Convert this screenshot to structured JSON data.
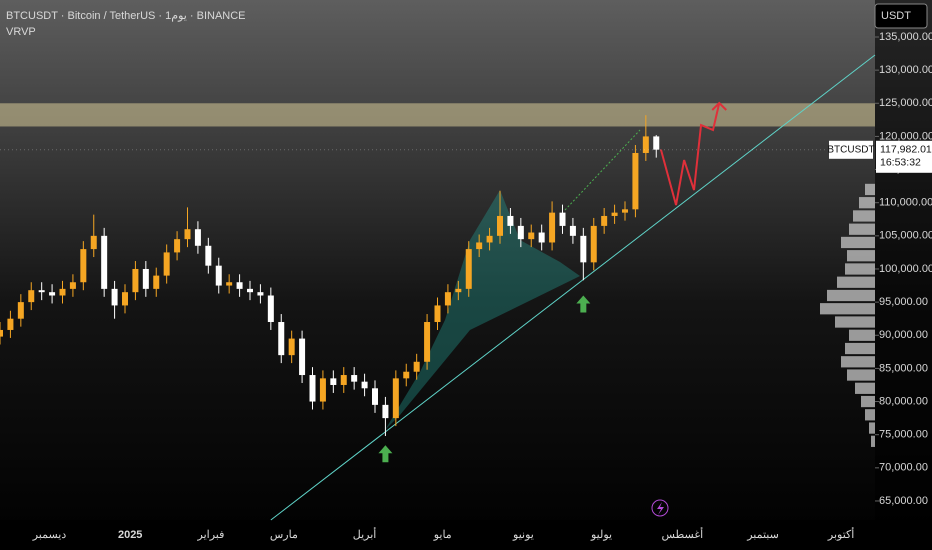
{
  "chart_data": {
    "type": "candlestick",
    "title": "BTCUSDT · Bitcoin / TetherUS · 1يوم · BINANCE",
    "indicator": "VRVP",
    "currency": "USDT",
    "symbol": "BTCUSDT",
    "last_price": {
      "value": 117982.01,
      "label": "117,982.01"
    },
    "countdown": "16:53:32",
    "x": [
      0,
      4,
      8,
      12,
      16,
      20,
      24,
      28,
      32,
      36,
      40,
      44,
      48,
      52,
      56,
      60,
      64,
      68,
      72,
      76,
      80,
      84,
      88,
      92,
      96,
      100,
      104,
      108,
      112,
      116,
      120,
      124,
      128,
      132,
      136,
      140,
      144,
      148,
      152,
      156,
      160,
      164,
      168,
      172,
      176,
      180,
      184,
      188,
      192,
      196,
      200,
      204,
      208,
      212,
      216,
      220,
      224,
      228,
      232,
      236,
      240,
      244,
      248,
      252
    ],
    "open": [
      89800,
      90800,
      92500,
      95000,
      96800,
      96500,
      96000,
      97000,
      98000,
      103000,
      105000,
      97000,
      94500,
      96500,
      100000,
      97000,
      99000,
      102500,
      104500,
      106000,
      103500,
      100500,
      97500,
      98000,
      97000,
      96500,
      96000,
      92000,
      87000,
      89500,
      84000,
      80000,
      83500,
      82500,
      84000,
      83000,
      82000,
      79500,
      77500,
      83500,
      84500,
      86000,
      92000,
      94500,
      96500,
      97000,
      103000,
      104000,
      105000,
      108000,
      106500,
      104500,
      105500,
      104000,
      108500,
      106500,
      105000,
      101000,
      106500,
      108000,
      108500,
      109000,
      117500,
      120000
    ],
    "high": [
      92000,
      93700,
      96200,
      98000,
      98000,
      97700,
      98200,
      99200,
      104200,
      108200,
      106200,
      98200,
      97700,
      101200,
      101200,
      100200,
      103700,
      105700,
      109300,
      107200,
      104700,
      101700,
      99200,
      99200,
      98200,
      97700,
      97200,
      93200,
      90700,
      90700,
      85200,
      84700,
      84700,
      85200,
      85200,
      84200,
      83200,
      80700,
      84700,
      85700,
      87200,
      93200,
      95700,
      97700,
      98200,
      104200,
      105200,
      106200,
      111800,
      109200,
      107700,
      106700,
      106700,
      110200,
      109700,
      107700,
      106200,
      107700,
      109200,
      109700,
      110200,
      118700,
      123200,
      120200
    ],
    "low": [
      88600,
      89600,
      91300,
      93800,
      95300,
      94800,
      94800,
      95800,
      96800,
      101800,
      95800,
      92500,
      93300,
      95300,
      95800,
      95800,
      97800,
      101300,
      103300,
      102300,
      99300,
      96300,
      96300,
      95800,
      95300,
      94800,
      90800,
      85800,
      85800,
      82800,
      78800,
      78800,
      81300,
      81300,
      81800,
      80800,
      78300,
      74800,
      76300,
      82300,
      83300,
      84800,
      90800,
      93300,
      95300,
      95800,
      101800,
      102800,
      103800,
      105300,
      103300,
      103300,
      102800,
      102800,
      105300,
      103800,
      98300,
      99800,
      105300,
      106800,
      107300,
      107800,
      116300,
      116800
    ],
    "close": [
      90800,
      92500,
      95000,
      96800,
      96500,
      96000,
      97000,
      98000,
      103000,
      105000,
      97000,
      94500,
      96500,
      100000,
      97000,
      99000,
      102500,
      104500,
      106000,
      103500,
      100500,
      97500,
      98000,
      97000,
      96500,
      96000,
      92000,
      87000,
      89500,
      84000,
      80000,
      83500,
      82500,
      84000,
      83000,
      82000,
      79500,
      77500,
      83500,
      84500,
      86000,
      92000,
      94500,
      96500,
      97000,
      103000,
      104000,
      105000,
      108000,
      106500,
      104500,
      105500,
      104000,
      108500,
      106500,
      105000,
      101000,
      106500,
      108000,
      108500,
      109000,
      117500,
      120000,
      118000
    ],
    "up_color": "#f5a623",
    "down_color": "#ffffff",
    "xlim": [
      0,
      336
    ],
    "xticks": [
      {
        "value": 19,
        "label": "ديسمبر"
      },
      {
        "value": 50,
        "label": "2025"
      },
      {
        "value": 81,
        "label": "فبراير"
      },
      {
        "value": 109,
        "label": "مارس"
      },
      {
        "value": 140,
        "label": "أبريل"
      },
      {
        "value": 170,
        "label": "مايو"
      },
      {
        "value": 201,
        "label": "يونيو"
      },
      {
        "value": 231,
        "label": "يوليو"
      },
      {
        "value": 262,
        "label": "أغسطس"
      },
      {
        "value": 293,
        "label": "سبتمبر"
      },
      {
        "value": 323,
        "label": "أكتوبر"
      }
    ],
    "ylim": [
      62130,
      140580
    ],
    "yticks": [
      {
        "value": 65000,
        "label": "65,000.00"
      },
      {
        "value": 70000,
        "label": "70,000.00"
      },
      {
        "value": 75000,
        "label": "75,000.00"
      },
      {
        "value": 80000,
        "label": "80,000.00"
      },
      {
        "value": 85000,
        "label": "85,000.00"
      },
      {
        "value": 90000,
        "label": "90,000.00"
      },
      {
        "value": 95000,
        "label": "95,000.00"
      },
      {
        "value": 100000,
        "label": "100,000.00"
      },
      {
        "value": 105000,
        "label": "105,000.00"
      },
      {
        "value": 110000,
        "label": "110,000.00"
      },
      {
        "value": 115000,
        "label": "115,000.00"
      },
      {
        "value": 120000,
        "label": "120,000.00"
      },
      {
        "value": 125000,
        "label": "125,000.00"
      },
      {
        "value": 130000,
        "label": "130,000.00"
      },
      {
        "value": 135000,
        "label": "135,000.00"
      }
    ],
    "zone": [
      121500,
      125000
    ],
    "trendline": [
      [
        104,
        62130
      ],
      [
        336,
        132280
      ]
    ],
    "projection": {
      "x": [
        253.8,
        259.6,
        262.7,
        266.5,
        269.2,
        273.8,
        276.2
      ],
      "y": [
        118000,
        109650,
        116440,
        111910,
        121720,
        120970,
        125040
      ]
    },
    "markers": {
      "x": [
        148,
        224
      ],
      "y": [
        73400,
        96000
      ]
    },
    "volume_profile": {
      "prices": [
        74000,
        76000,
        78000,
        80000,
        82000,
        84000,
        86000,
        88000,
        90000,
        92000,
        94000,
        96000,
        98000,
        100000,
        102000,
        104000,
        106000,
        108000,
        110000,
        112000
      ],
      "volumes": [
        4,
        6,
        10,
        14,
        20,
        28,
        34,
        30,
        26,
        40,
        55,
        48,
        38,
        30,
        28,
        34,
        26,
        22,
        16,
        10
      ]
    }
  }
}
